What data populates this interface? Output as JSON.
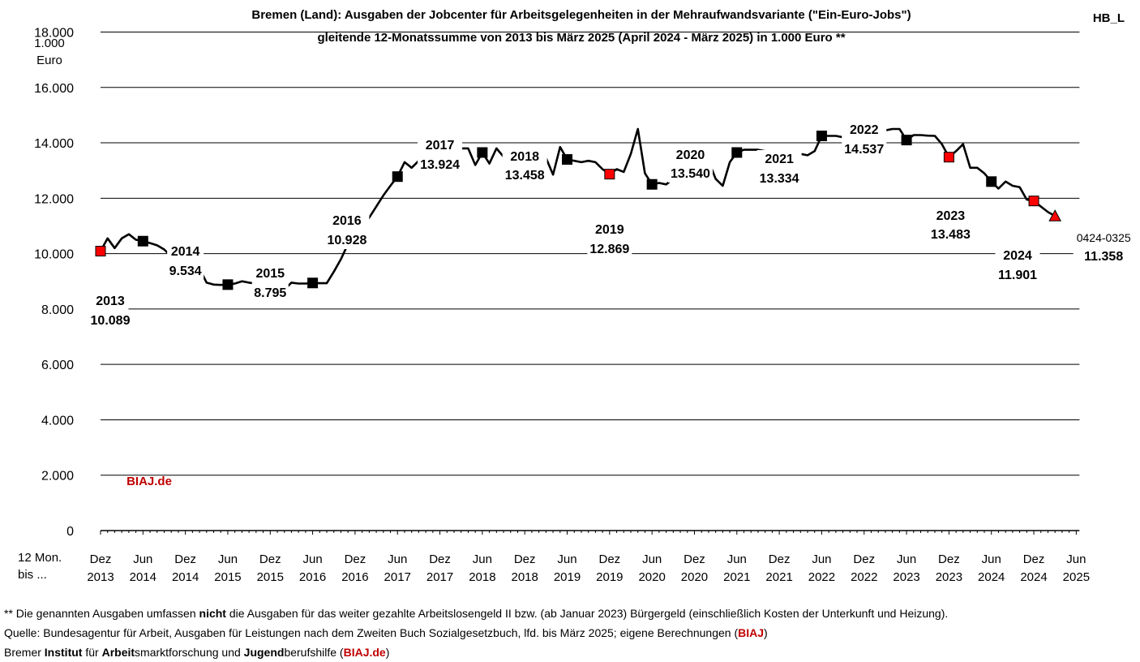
{
  "header": {
    "title_line1": "Bremen (Land): Ausgaben der Jobcenter für Arbeitsgelegenheiten in der Mehraufwandsvariante (\"Ein-Euro-Jobs\")",
    "title_line2": "gleitende 12-Monatssumme von 2013 bis März 2025 (April 2024 - März 2025) in 1.000 Euro **",
    "corner_tag": "HB_L",
    "unit_line1": "1.000",
    "unit_line2": "Euro",
    "x_prefix_line1": "12 Mon.",
    "x_prefix_line2": "bis ..."
  },
  "watermark": "BIAJ.de",
  "colors": {
    "line": "#000000",
    "december_marker": "#ff0000",
    "june_marker": "#000000",
    "last_marker": "#ff0000",
    "accent_text": "#c00000"
  },
  "chart_data": {
    "type": "line",
    "title": "Bremen (Land): Ausgaben der Jobcenter für Arbeitsgelegenheiten in der Mehraufwandsvariante (\"Ein-Euro-Jobs\")",
    "subtitle": "gleitende 12-Monatssumme von 2013 bis März 2025 (April 2024 - März 2025) in 1.000 Euro **",
    "ylabel": "1.000 Euro",
    "ylim": [
      0,
      18000
    ],
    "yticks": [
      "0",
      "2.000",
      "4.000",
      "6.000",
      "8.000",
      "10.000",
      "12.000",
      "14.000",
      "16.000",
      "18.000"
    ],
    "grid": true,
    "x_tick_labels": [
      [
        "Dez",
        "2013"
      ],
      [
        "Jun",
        "2014"
      ],
      [
        "Dez",
        "2014"
      ],
      [
        "Jun",
        "2015"
      ],
      [
        "Dez",
        "2015"
      ],
      [
        "Jun",
        "2016"
      ],
      [
        "Dez",
        "2016"
      ],
      [
        "Jun",
        "2017"
      ],
      [
        "Dez",
        "2017"
      ],
      [
        "Jun",
        "2018"
      ],
      [
        "Dez",
        "2018"
      ],
      [
        "Jun",
        "2019"
      ],
      [
        "Dez",
        "2019"
      ],
      [
        "Jun",
        "2020"
      ],
      [
        "Dez",
        "2020"
      ],
      [
        "Jun",
        "2021"
      ],
      [
        "Dez",
        "2021"
      ],
      [
        "Jun",
        "2022"
      ],
      [
        "Dez",
        "2022"
      ],
      [
        "Jun",
        "2023"
      ],
      [
        "Dez",
        "2023"
      ],
      [
        "Jun",
        "2024"
      ],
      [
        "Dez",
        "2024"
      ],
      [
        "Jun",
        "2025"
      ]
    ],
    "x_start": "2013-12",
    "x_end": "2025-03",
    "series": [
      {
        "values": [
          10089,
          10550,
          10200,
          10550,
          10700,
          10500,
          10450,
          10380,
          10300,
          10150,
          9900,
          9700,
          9534,
          9350,
          9450,
          8950,
          8880,
          8870,
          8880,
          8920,
          9000,
          8950,
          8920,
          8880,
          8795,
          8750,
          8700,
          8950,
          8920,
          8920,
          8940,
          8930,
          8930,
          9350,
          9800,
          10350,
          10928,
          10900,
          11300,
          11700,
          12100,
          12450,
          12780,
          13300,
          13100,
          13350,
          13350,
          13750,
          13924,
          14200,
          14100,
          13800,
          13800,
          13200,
          13650,
          13250,
          13800,
          13500,
          13700,
          13450,
          13458,
          13450,
          13450,
          13450,
          12850,
          13850,
          13400,
          13350,
          13300,
          13350,
          13300,
          13050,
          12869,
          13050,
          12950,
          13600,
          14500,
          12900,
          12500,
          12550,
          12500,
          12700,
          13350,
          13350,
          13540,
          13200,
          13350,
          12700,
          12450,
          13300,
          13650,
          13750,
          13750,
          13750,
          13700,
          13100,
          13334,
          13400,
          13300,
          13600,
          13550,
          13700,
          14250,
          14250,
          14250,
          14200,
          14350,
          14550,
          14537,
          14600,
          14100,
          14450,
          14500,
          14500,
          14100,
          14280,
          14280,
          14260,
          14250,
          13950,
          13483,
          13700,
          13950,
          13100,
          13100,
          12900,
          12600,
          12350,
          12600,
          12450,
          12400,
          11950,
          11901,
          11700,
          11500,
          11358
        ]
      }
    ],
    "annotations": [
      {
        "x": "2013-12",
        "label_year": "2013",
        "label_value": "10.089",
        "value": 10089
      },
      {
        "x": "2014-12",
        "label_year": "2014",
        "label_value": "9.534",
        "value": 9534
      },
      {
        "x": "2015-12",
        "label_year": "2015",
        "label_value": "8.795",
        "value": 8795
      },
      {
        "x": "2016-12",
        "label_year": "2016",
        "label_value": "10.928",
        "value": 10928
      },
      {
        "x": "2017-12",
        "label_year": "2017",
        "label_value": "13.924",
        "value": 13924
      },
      {
        "x": "2018-12",
        "label_year": "2018",
        "label_value": "13.458",
        "value": 13458
      },
      {
        "x": "2019-12",
        "label_year": "2019",
        "label_value": "12.869",
        "value": 12869
      },
      {
        "x": "2020-12",
        "label_year": "2020",
        "label_value": "13.540",
        "value": 13540
      },
      {
        "x": "2021-12",
        "label_year": "2021",
        "label_value": "13.334",
        "value": 13334
      },
      {
        "x": "2022-12",
        "label_year": "2022",
        "label_value": "14.537",
        "value": 14537
      },
      {
        "x": "2023-12",
        "label_year": "2023",
        "label_value": "13.483",
        "value": 13483
      },
      {
        "x": "2024-12",
        "label_year": "2024",
        "label_value": "11.901",
        "value": 11901
      },
      {
        "x": "2025-03",
        "label_year": "0424-0325",
        "label_value": "11.358",
        "value": 11358
      }
    ]
  },
  "footnotes": {
    "line1_a": "** Die genannten Ausgaben umfassen ",
    "line1_b": "nicht",
    "line1_c": " die Ausgaben für das weiter gezahlte Arbeitslosengeld II bzw. (ab Januar 2023) Bürgergeld (einschließlich Kosten der Unterkunft und Heizung).",
    "line2_a": "Quelle: Bundesagentur für Arbeit, Ausgaben für Leistungen nach dem Zweiten Buch Sozialgesetzbuch, lfd. bis März 2025; eigene Berechnungen (",
    "line2_b": "BIAJ",
    "line2_c": ")",
    "line3_a": "Bremer ",
    "line3_b": "Institut",
    "line3_c": " für ",
    "line3_d": "Arbeit",
    "line3_e": "smarktforschung und ",
    "line3_f": "Jugend",
    "line3_g": "berufshilfe (",
    "line3_h": "BIAJ.de",
    "line3_i": ")"
  }
}
